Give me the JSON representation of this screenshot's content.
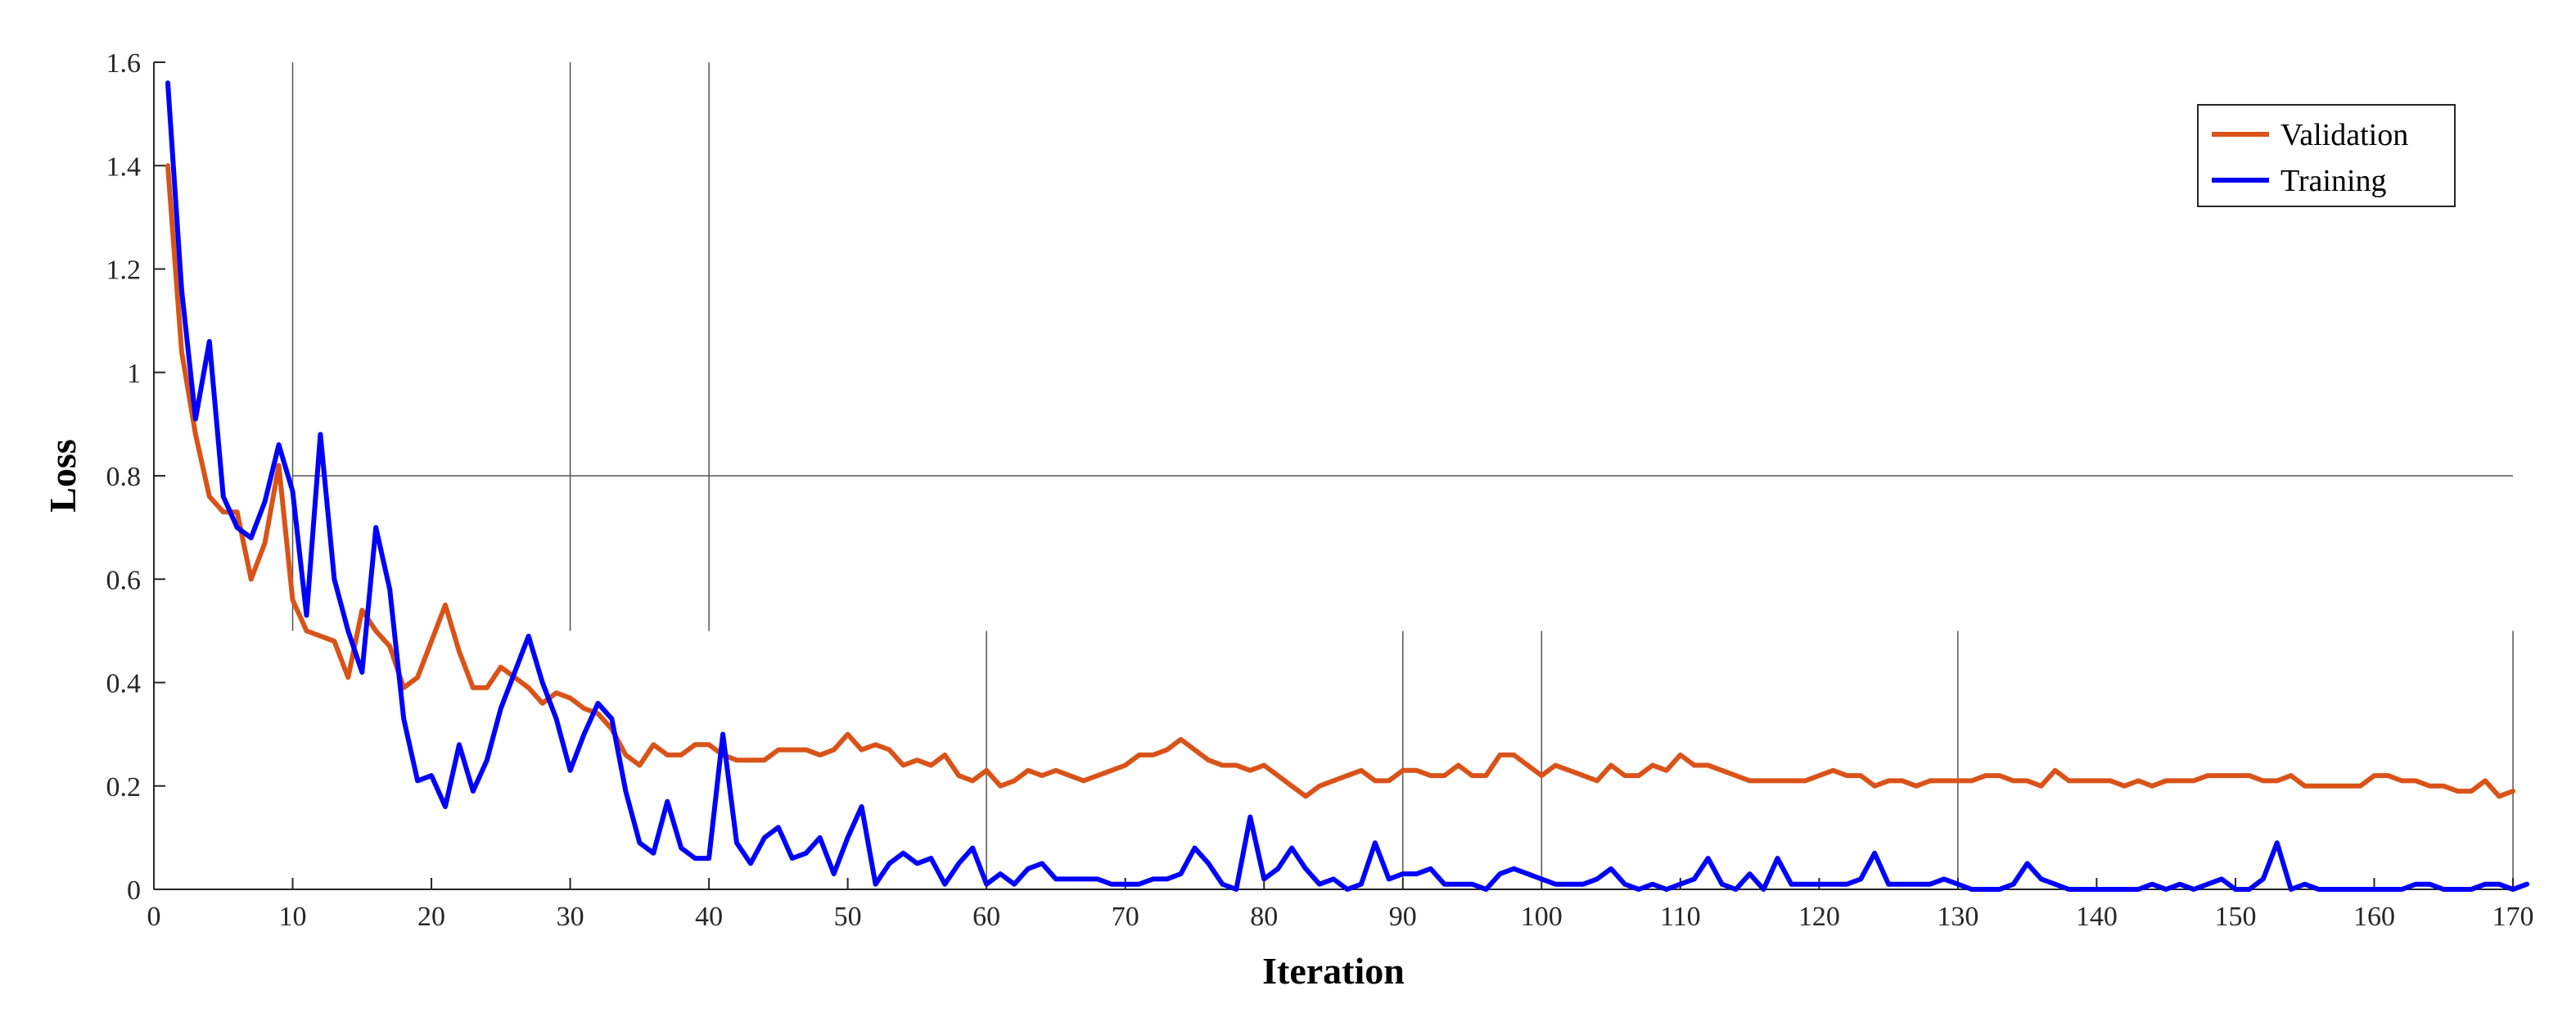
{
  "chart_data": {
    "type": "line",
    "xlabel": "Iteration",
    "ylabel": "Loss",
    "xlim": [
      0,
      170
    ],
    "ylim": [
      0,
      1.6
    ],
    "xticks": [
      0,
      10,
      20,
      30,
      40,
      50,
      60,
      70,
      80,
      90,
      100,
      110,
      120,
      130,
      140,
      150,
      160,
      170
    ],
    "yticks": [
      0,
      0.2,
      0.4,
      0.6,
      0.8,
      1,
      1.2,
      1.4,
      1.6
    ],
    "legend_position": "top-right",
    "reference_lines": {
      "horizontal": [
        {
          "y": 0.8,
          "x_from": 10,
          "x_to": 170
        }
      ],
      "vertical": [
        {
          "x": 10,
          "y_from": 0.5,
          "y_to": 1.6
        },
        {
          "x": 30,
          "y_from": 0.5,
          "y_to": 1.6
        },
        {
          "x": 40,
          "y_from": 0.5,
          "y_to": 1.6
        },
        {
          "x": 60,
          "y_from": 0,
          "y_to": 0.5
        },
        {
          "x": 90,
          "y_from": 0,
          "y_to": 0.5
        },
        {
          "x": 100,
          "y_from": 0,
          "y_to": 0.5
        },
        {
          "x": 130,
          "y_from": 0,
          "y_to": 0.5
        },
        {
          "x": 170,
          "y_from": 0,
          "y_to": 0.5
        }
      ]
    },
    "series": [
      {
        "name": "Validation",
        "color": "#D95319",
        "values": [
          1.4,
          1.04,
          0.88,
          0.76,
          0.73,
          0.73,
          0.6,
          0.67,
          0.82,
          0.56,
          0.5,
          0.49,
          0.48,
          0.41,
          0.54,
          0.5,
          0.47,
          0.39,
          0.41,
          0.48,
          0.55,
          0.46,
          0.39,
          0.39,
          0.43,
          0.41,
          0.39,
          0.36,
          0.38,
          0.37,
          0.35,
          0.34,
          0.31,
          0.26,
          0.24,
          0.28,
          0.26,
          0.26,
          0.28,
          0.28,
          0.26,
          0.25,
          0.25,
          0.25,
          0.27,
          0.27,
          0.27,
          0.26,
          0.27,
          0.3,
          0.27,
          0.28,
          0.27,
          0.24,
          0.25,
          0.24,
          0.26,
          0.22,
          0.21,
          0.23,
          0.2,
          0.21,
          0.23,
          0.22,
          0.23,
          0.22,
          0.21,
          0.22,
          0.23,
          0.24,
          0.26,
          0.26,
          0.27,
          0.29,
          0.27,
          0.25,
          0.24,
          0.24,
          0.23,
          0.24,
          0.22,
          0.2,
          0.18,
          0.2,
          0.21,
          0.22,
          0.23,
          0.21,
          0.21,
          0.23,
          0.23,
          0.22,
          0.22,
          0.24,
          0.22,
          0.22,
          0.26,
          0.26,
          0.24,
          0.22,
          0.24,
          0.23,
          0.22,
          0.21,
          0.24,
          0.22,
          0.22,
          0.24,
          0.23,
          0.26,
          0.24,
          0.24,
          0.23,
          0.22,
          0.21,
          0.21,
          0.21,
          0.21,
          0.21,
          0.22,
          0.23,
          0.22,
          0.22,
          0.2,
          0.21,
          0.21,
          0.2,
          0.21,
          0.21,
          0.21,
          0.21,
          0.22,
          0.22,
          0.21,
          0.21,
          0.2,
          0.23,
          0.21,
          0.21,
          0.21,
          0.21,
          0.2,
          0.21,
          0.2,
          0.21,
          0.21,
          0.21,
          0.22,
          0.22,
          0.22,
          0.22,
          0.21,
          0.21,
          0.22,
          0.2,
          0.2,
          0.2,
          0.2,
          0.2,
          0.22,
          0.22,
          0.21,
          0.21,
          0.2,
          0.2,
          0.19,
          0.19,
          0.21,
          0.18,
          0.19
        ]
      },
      {
        "name": "Training",
        "color": "#0000FF",
        "values": [
          1.56,
          1.16,
          0.91,
          1.06,
          0.76,
          0.7,
          0.68,
          0.75,
          0.86,
          0.77,
          0.53,
          0.88,
          0.6,
          0.5,
          0.42,
          0.7,
          0.58,
          0.33,
          0.21,
          0.22,
          0.16,
          0.28,
          0.19,
          0.25,
          0.35,
          0.42,
          0.49,
          0.4,
          0.33,
          0.23,
          0.3,
          0.36,
          0.33,
          0.19,
          0.09,
          0.07,
          0.17,
          0.08,
          0.06,
          0.06,
          0.3,
          0.09,
          0.05,
          0.1,
          0.12,
          0.06,
          0.07,
          0.1,
          0.03,
          0.1,
          0.16,
          0.01,
          0.05,
          0.07,
          0.05,
          0.06,
          0.01,
          0.05,
          0.08,
          0.01,
          0.03,
          0.01,
          0.04,
          0.05,
          0.02,
          0.02,
          0.02,
          0.02,
          0.01,
          0.01,
          0.01,
          0.02,
          0.02,
          0.03,
          0.08,
          0.05,
          0.01,
          0.0,
          0.14,
          0.02,
          0.04,
          0.08,
          0.04,
          0.01,
          0.02,
          0.0,
          0.01,
          0.09,
          0.02,
          0.03,
          0.03,
          0.04,
          0.01,
          0.01,
          0.01,
          0.0,
          0.03,
          0.04,
          0.03,
          0.02,
          0.01,
          0.01,
          0.01,
          0.02,
          0.04,
          0.01,
          0.0,
          0.01,
          0.0,
          0.01,
          0.02,
          0.06,
          0.01,
          0.0,
          0.03,
          0.0,
          0.06,
          0.01,
          0.01,
          0.01,
          0.01,
          0.01,
          0.02,
          0.07,
          0.01,
          0.01,
          0.01,
          0.01,
          0.02,
          0.01,
          0.0,
          0.0,
          0.0,
          0.01,
          0.05,
          0.02,
          0.01,
          0.0,
          0.0,
          0.0,
          0.0,
          0.0,
          0.0,
          0.01,
          0.0,
          0.01,
          0.0,
          0.01,
          0.02,
          0.0,
          0.0,
          0.02,
          0.09,
          0.0,
          0.01,
          0.0,
          0.0,
          0.0,
          0.0,
          0.0,
          0.0,
          0.0,
          0.01,
          0.01,
          0.0,
          0.0,
          0.0,
          0.01,
          0.01,
          0.0,
          0.01
        ]
      }
    ]
  }
}
